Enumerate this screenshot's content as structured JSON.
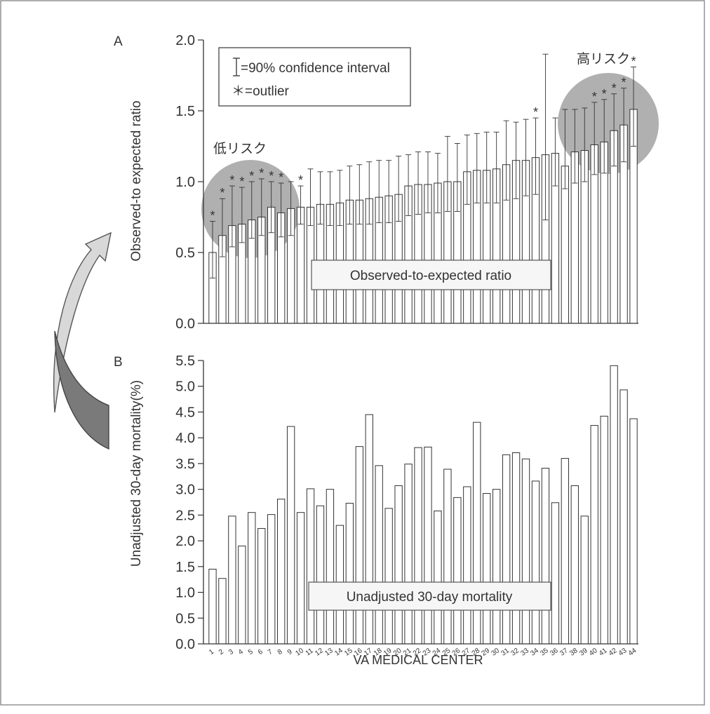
{
  "colors": {
    "bar_fill": "#ffffff",
    "bar_stroke": "#333333",
    "highlight": "#8a8a8a",
    "arrow_light": "#d8d8d8",
    "arrow_dark": "#7a7a7a"
  },
  "xlabel": "VA MEDICAL CENTER",
  "legend": {
    "ci_text": "=90% confidence interval",
    "outlier_text": "＊=outlier"
  },
  "annotations": {
    "low_risk": "低リスク",
    "high_risk": "高リスク"
  },
  "chart_data": [
    {
      "panel": "A",
      "type": "bar",
      "ylabel": "Observed-to expected ratio",
      "caption": "Observed-to-expected ratio",
      "ylim": [
        0,
        2.0
      ],
      "yticks": [
        "0.0",
        "0.5",
        "1.0",
        "1.5",
        "2.0"
      ],
      "categories": [
        "1",
        "2",
        "3",
        "4",
        "5",
        "6",
        "7",
        "8",
        "9",
        "10",
        "11",
        "12",
        "13",
        "14",
        "15",
        "16",
        "17",
        "18",
        "19",
        "20",
        "21",
        "22",
        "23",
        "24",
        "25",
        "26",
        "27",
        "28",
        "29",
        "30",
        "31",
        "32",
        "33",
        "34",
        "35",
        "36",
        "37",
        "38",
        "39",
        "40",
        "41",
        "42",
        "43",
        "44"
      ],
      "values": [
        0.5,
        0.62,
        0.69,
        0.7,
        0.73,
        0.75,
        0.82,
        0.78,
        0.81,
        0.82,
        0.82,
        0.84,
        0.84,
        0.85,
        0.87,
        0.87,
        0.88,
        0.89,
        0.9,
        0.91,
        0.97,
        0.98,
        0.98,
        0.99,
        1.0,
        1.0,
        1.07,
        1.08,
        1.08,
        1.09,
        1.12,
        1.15,
        1.15,
        1.17,
        1.19,
        1.2,
        1.11,
        1.21,
        1.22,
        1.26,
        1.28,
        1.36,
        1.4,
        1.51
      ],
      "ci_low": [
        0.32,
        0.47,
        0.54,
        0.57,
        0.6,
        0.62,
        0.64,
        0.61,
        0.62,
        0.7,
        0.69,
        0.7,
        0.69,
        0.69,
        0.7,
        0.7,
        0.7,
        0.71,
        0.71,
        0.72,
        0.76,
        0.77,
        0.78,
        0.78,
        0.79,
        0.79,
        0.84,
        0.85,
        0.85,
        0.85,
        0.87,
        0.88,
        0.9,
        0.91,
        0.73,
        0.97,
        0.95,
        0.99,
        1.0,
        1.05,
        1.06,
        1.11,
        1.14,
        1.25
      ],
      "ci_high": [
        0.72,
        0.88,
        0.97,
        0.96,
        1.0,
        1.02,
        1.0,
        0.99,
        1.0,
        0.97,
        1.09,
        1.07,
        1.07,
        1.08,
        1.11,
        1.12,
        1.14,
        1.15,
        1.15,
        1.18,
        1.19,
        1.21,
        1.21,
        1.2,
        1.32,
        1.27,
        1.33,
        1.34,
        1.35,
        1.35,
        1.43,
        1.42,
        1.44,
        1.45,
        1.9,
        1.45,
        1.51,
        1.51,
        1.52,
        1.56,
        1.58,
        1.62,
        1.66,
        1.81
      ],
      "outliers": [
        1,
        2,
        3,
        4,
        5,
        6,
        7,
        8,
        10,
        34,
        40,
        41,
        42,
        43,
        44
      ]
    },
    {
      "panel": "B",
      "type": "bar",
      "ylabel": "Unadjusted 30-day mortality(%)",
      "caption": "Unadjusted 30-day mortality",
      "ylim": [
        0,
        5.5
      ],
      "yticks": [
        "0.0",
        "0.5",
        "1.0",
        "1.5",
        "2.0",
        "2.5",
        "3.0",
        "3.5",
        "4.0",
        "4.5",
        "5.0",
        "5.5"
      ],
      "categories": [
        "1",
        "2",
        "3",
        "4",
        "5",
        "6",
        "7",
        "8",
        "9",
        "10",
        "11",
        "12",
        "13",
        "14",
        "15",
        "16",
        "17",
        "18",
        "19",
        "20",
        "21",
        "22",
        "23",
        "24",
        "25",
        "26",
        "27",
        "28",
        "29",
        "30",
        "31",
        "32",
        "33",
        "34",
        "35",
        "36",
        "37",
        "38",
        "39",
        "40",
        "41",
        "42",
        "43",
        "44"
      ],
      "values": [
        1.45,
        1.27,
        2.48,
        1.9,
        2.55,
        2.24,
        2.51,
        2.81,
        4.22,
        2.55,
        3.01,
        2.68,
        3.0,
        2.3,
        2.73,
        3.83,
        4.45,
        3.46,
        2.63,
        3.07,
        3.49,
        3.81,
        3.82,
        2.58,
        3.39,
        2.84,
        3.05,
        4.3,
        2.92,
        3.0,
        3.67,
        3.71,
        3.59,
        3.16,
        3.41,
        2.74,
        3.6,
        3.07,
        2.48,
        4.24,
        4.42,
        5.4,
        4.93,
        4.37
      ]
    }
  ]
}
